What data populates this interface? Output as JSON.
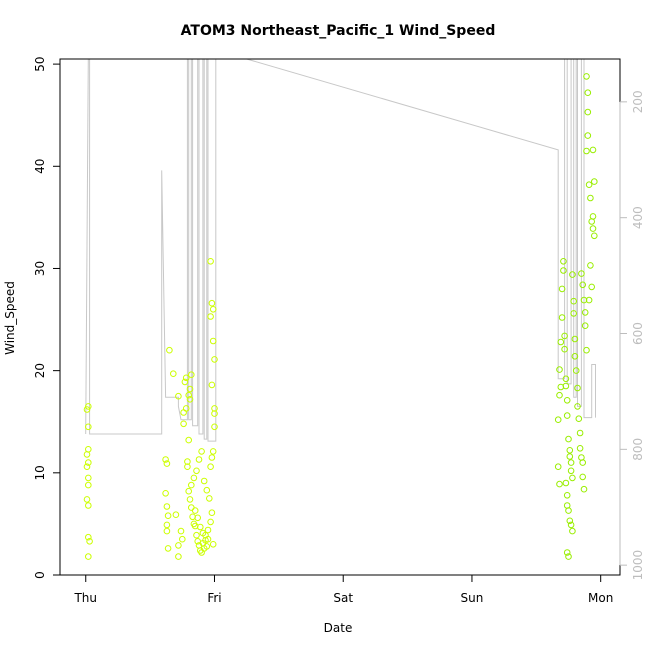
{
  "chart_data": {
    "type": "scatter",
    "title": "ATOM3 Northeast_Pacific_1 Wind_Speed",
    "xlabel": "Date",
    "ylabel": "Wind_Speed",
    "x_unit": "days (0 = Thu 00:00)",
    "xlim": [
      -0.2,
      4.15
    ],
    "ylim": [
      0,
      50.5
    ],
    "x_ticks": [
      {
        "value": 0,
        "label": "Thu"
      },
      {
        "value": 1,
        "label": "Fri"
      },
      {
        "value": 2,
        "label": "Sat"
      },
      {
        "value": 3,
        "label": "Sun"
      },
      {
        "value": 4,
        "label": "Mon"
      }
    ],
    "y_ticks": [
      0,
      10,
      20,
      30,
      40,
      50
    ],
    "right_axis": {
      "label": "",
      "ticks": [
        200,
        400,
        600,
        800,
        1000
      ],
      "range": [
        126,
        1017
      ],
      "color": "#bdbdbd"
    },
    "grid": false,
    "legend": "none",
    "point_color": "#aaff00",
    "point_color_alt": "#ddff00",
    "line_color": "#c8c8c8",
    "series": [
      {
        "kind": "points",
        "color": "#ccff00",
        "points": [
          [
            0.02,
            16.5
          ],
          [
            0.01,
            16.2
          ],
          [
            0.02,
            14.5
          ],
          [
            0.02,
            12.3
          ],
          [
            0.01,
            11.8
          ],
          [
            0.02,
            11.0
          ],
          [
            0.01,
            10.6
          ],
          [
            0.02,
            9.5
          ],
          [
            0.02,
            8.8
          ],
          [
            0.01,
            7.4
          ],
          [
            0.02,
            6.8
          ],
          [
            0.02,
            3.7
          ],
          [
            0.03,
            3.3
          ],
          [
            0.02,
            1.8
          ],
          [
            0.62,
            11.3
          ],
          [
            0.63,
            10.9
          ],
          [
            0.62,
            8.0
          ],
          [
            0.63,
            6.7
          ],
          [
            0.64,
            5.8
          ],
          [
            0.63,
            4.9
          ],
          [
            0.63,
            4.3
          ],
          [
            0.64,
            2.6
          ],
          [
            0.65,
            22.0
          ],
          [
            0.68,
            19.7
          ],
          [
            0.72,
            17.5
          ],
          [
            0.7,
            5.9
          ],
          [
            0.72,
            2.9
          ],
          [
            0.72,
            1.8
          ],
          [
            0.74,
            4.3
          ],
          [
            0.75,
            3.5
          ],
          [
            0.76,
            15.9
          ],
          [
            0.76,
            14.8
          ],
          [
            0.77,
            18.9
          ],
          [
            0.78,
            16.3
          ],
          [
            0.78,
            19.3
          ],
          [
            0.79,
            11.1
          ],
          [
            0.79,
            10.6
          ],
          [
            0.8,
            13.2
          ],
          [
            0.8,
            17.6
          ],
          [
            0.81,
            18.2
          ],
          [
            0.81,
            17.2
          ],
          [
            0.82,
            19.6
          ],
          [
            0.8,
            8.2
          ],
          [
            0.81,
            7.4
          ],
          [
            0.82,
            6.6
          ],
          [
            0.83,
            5.7
          ],
          [
            0.84,
            5.0
          ],
          [
            0.85,
            4.8
          ],
          [
            0.86,
            3.9
          ],
          [
            0.87,
            3.3
          ],
          [
            0.88,
            2.9
          ],
          [
            0.89,
            2.4
          ],
          [
            0.9,
            2.2
          ],
          [
            0.91,
            3.1
          ],
          [
            0.92,
            2.6
          ],
          [
            0.93,
            3.4
          ],
          [
            0.94,
            2.8
          ],
          [
            0.95,
            3.5
          ],
          [
            0.82,
            8.8
          ],
          [
            0.84,
            9.5
          ],
          [
            0.86,
            10.2
          ],
          [
            0.88,
            11.3
          ],
          [
            0.9,
            12.1
          ],
          [
            0.92,
            9.2
          ],
          [
            0.94,
            8.3
          ],
          [
            0.96,
            7.5
          ],
          [
            0.98,
            6.1
          ],
          [
            0.85,
            6.3
          ],
          [
            0.87,
            5.6
          ],
          [
            0.89,
            4.7
          ],
          [
            0.91,
            4.1
          ],
          [
            0.93,
            3.9
          ],
          [
            0.95,
            4.4
          ],
          [
            0.97,
            5.2
          ],
          [
            0.99,
            3.0
          ],
          [
            0.97,
            30.7
          ],
          [
            0.98,
            26.6
          ],
          [
            0.99,
            26.0
          ],
          [
            0.97,
            25.3
          ],
          [
            0.99,
            22.9
          ],
          [
            1.0,
            21.1
          ],
          [
            0.98,
            18.6
          ],
          [
            1.0,
            16.3
          ],
          [
            1.0,
            15.8
          ],
          [
            1.0,
            14.5
          ],
          [
            0.99,
            12.1
          ],
          [
            0.98,
            11.5
          ],
          [
            0.97,
            10.6
          ]
        ]
      },
      {
        "kind": "points",
        "color": "#99ee00",
        "points": [
          [
            3.67,
            10.6
          ],
          [
            3.68,
            8.9
          ],
          [
            3.67,
            15.2
          ],
          [
            3.68,
            17.6
          ],
          [
            3.69,
            18.4
          ],
          [
            3.68,
            20.1
          ],
          [
            3.69,
            22.8
          ],
          [
            3.7,
            25.2
          ],
          [
            3.7,
            28.0
          ],
          [
            3.71,
            29.8
          ],
          [
            3.71,
            30.7
          ],
          [
            3.72,
            23.4
          ],
          [
            3.72,
            22.1
          ],
          [
            3.73,
            19.2
          ],
          [
            3.73,
            18.5
          ],
          [
            3.74,
            17.1
          ],
          [
            3.74,
            15.6
          ],
          [
            3.75,
            13.3
          ],
          [
            3.76,
            12.2
          ],
          [
            3.76,
            11.6
          ],
          [
            3.77,
            11.0
          ],
          [
            3.77,
            10.2
          ],
          [
            3.78,
            9.5
          ],
          [
            3.73,
            9.0
          ],
          [
            3.74,
            7.8
          ],
          [
            3.74,
            6.8
          ],
          [
            3.75,
            6.3
          ],
          [
            3.76,
            5.3
          ],
          [
            3.77,
            4.9
          ],
          [
            3.78,
            4.3
          ],
          [
            3.74,
            2.2
          ],
          [
            3.75,
            1.8
          ],
          [
            3.78,
            29.4
          ],
          [
            3.79,
            26.8
          ],
          [
            3.79,
            25.6
          ],
          [
            3.8,
            23.1
          ],
          [
            3.8,
            21.4
          ],
          [
            3.81,
            20.0
          ],
          [
            3.82,
            18.3
          ],
          [
            3.82,
            16.5
          ],
          [
            3.83,
            15.3
          ],
          [
            3.84,
            13.9
          ],
          [
            3.84,
            12.4
          ],
          [
            3.85,
            11.5
          ],
          [
            3.86,
            11.0
          ],
          [
            3.86,
            9.6
          ],
          [
            3.87,
            8.4
          ],
          [
            3.85,
            29.5
          ],
          [
            3.86,
            28.4
          ],
          [
            3.87,
            26.9
          ],
          [
            3.88,
            24.4
          ],
          [
            3.88,
            25.7
          ],
          [
            3.89,
            22.0
          ],
          [
            3.89,
            48.8
          ],
          [
            3.9,
            47.2
          ],
          [
            3.9,
            45.3
          ],
          [
            3.9,
            43.0
          ],
          [
            3.89,
            41.5
          ],
          [
            3.91,
            38.2
          ],
          [
            3.92,
            36.9
          ],
          [
            3.93,
            34.6
          ],
          [
            3.94,
            33.9
          ],
          [
            3.95,
            33.2
          ],
          [
            3.94,
            41.6
          ],
          [
            3.95,
            38.5
          ],
          [
            3.92,
            30.3
          ],
          [
            3.93,
            28.2
          ],
          [
            3.91,
            26.9
          ],
          [
            3.94,
            35.1
          ]
        ]
      },
      {
        "kind": "line",
        "color": "#c8c8c8",
        "points": [
          [
            0.0,
            13.8
          ],
          [
            0.02,
            50.5
          ],
          [
            0.03,
            50.5
          ],
          [
            0.03,
            13.8
          ],
          [
            0.59,
            13.8
          ],
          [
            0.59,
            39.6
          ],
          [
            0.62,
            17.4
          ],
          [
            0.72,
            17.4
          ],
          [
            0.72,
            16.5
          ],
          [
            0.74,
            15.2
          ],
          [
            0.79,
            15.2
          ],
          [
            0.79,
            50.5
          ],
          [
            0.8,
            50.5
          ],
          [
            0.8,
            15.2
          ],
          [
            0.82,
            15.2
          ],
          [
            0.82,
            50.5
          ],
          [
            0.83,
            50.5
          ],
          [
            0.83,
            14.6
          ],
          [
            0.87,
            14.6
          ],
          [
            0.87,
            50.5
          ],
          [
            0.88,
            50.5
          ],
          [
            0.88,
            13.8
          ],
          [
            0.91,
            13.8
          ],
          [
            0.91,
            50.5
          ],
          [
            0.92,
            50.5
          ],
          [
            0.92,
            13.3
          ],
          [
            0.94,
            13.3
          ],
          [
            0.94,
            50.5
          ],
          [
            0.95,
            50.5
          ],
          [
            0.95,
            13.1
          ],
          [
            1.01,
            13.1
          ],
          [
            1.01,
            50.5
          ],
          [
            1.03,
            50.5
          ],
          [
            1.25,
            50.5
          ],
          [
            3.67,
            41.6
          ],
          [
            3.67,
            19.2
          ],
          [
            3.72,
            19.2
          ],
          [
            3.72,
            50.5
          ],
          [
            3.74,
            50.5
          ],
          [
            3.74,
            18.7
          ],
          [
            3.77,
            18.7
          ],
          [
            3.77,
            50.5
          ],
          [
            3.79,
            50.5
          ],
          [
            3.79,
            17.4
          ],
          [
            3.81,
            17.4
          ],
          [
            3.81,
            50.5
          ],
          [
            3.82,
            50.5
          ],
          [
            3.82,
            16.5
          ],
          [
            3.85,
            16.5
          ],
          [
            3.85,
            50.5
          ],
          [
            3.87,
            50.5
          ],
          [
            3.87,
            15.4
          ],
          [
            3.93,
            15.4
          ],
          [
            3.93,
            20.6
          ],
          [
            3.96,
            20.6
          ],
          [
            3.96,
            15.4
          ]
        ]
      }
    ]
  }
}
